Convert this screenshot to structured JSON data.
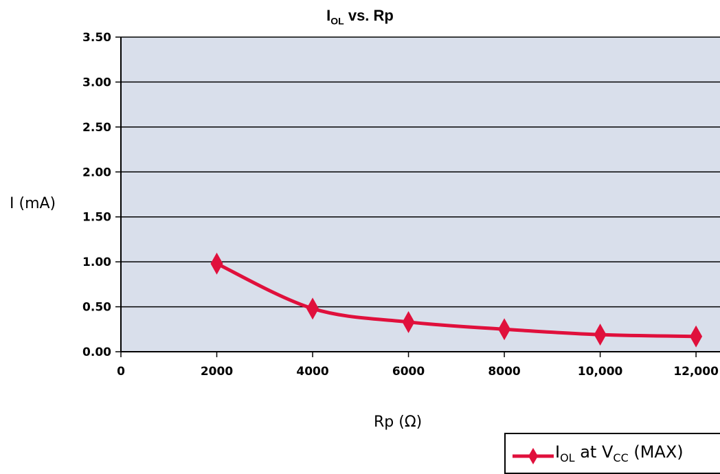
{
  "chart_data": {
    "type": "line",
    "title": {
      "main": "I",
      "sub": "OL",
      "rest": " vs. Rp"
    },
    "xlabel": "Rp (Ω)",
    "ylabel": "I (mA)",
    "x": [
      2000,
      4000,
      6000,
      8000,
      10000,
      12000
    ],
    "xlim": [
      0,
      12500
    ],
    "ylim": [
      0,
      3.5
    ],
    "x_ticks": [
      0,
      2000,
      4000,
      6000,
      8000,
      10000,
      12000
    ],
    "x_tick_labels": [
      "0",
      "2000",
      "4000",
      "6000",
      "8000",
      "10,000",
      "12,000"
    ],
    "y_ticks": [
      0,
      0.5,
      1.0,
      1.5,
      2.0,
      2.5,
      3.0,
      3.5
    ],
    "y_tick_labels": [
      "0.00",
      "0.50",
      "1.00",
      "1.50",
      "2.00",
      "2.50",
      "3.00",
      "3.50"
    ],
    "grid": "horizontal",
    "plot_background": "#d9dfeb",
    "series": [
      {
        "name_parts": {
          "main": "I",
          "sub": "OL",
          "mid": " at V",
          "sub2": "CC",
          "rest": " (MAX)"
        },
        "color": "#e0103c",
        "marker": "diamond",
        "values": [
          0.98,
          0.48,
          0.33,
          0.25,
          0.19,
          0.17
        ]
      }
    ],
    "legend_position": "bottom-right"
  }
}
